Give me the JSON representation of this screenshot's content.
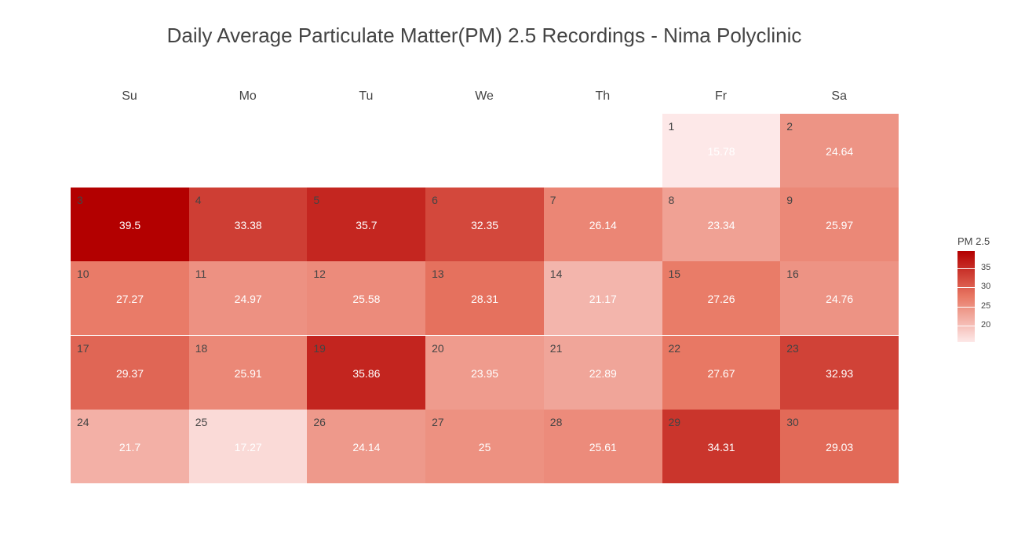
{
  "chart_data": {
    "type": "heatmap",
    "title": "Daily Average Particulate Matter(PM) 2.5 Recordings - Nima Polyclinic",
    "weekdays": [
      "Su",
      "Mo",
      "Tu",
      "We",
      "Th",
      "Fr",
      "Sa"
    ],
    "first_weekday_index": 5,
    "days": [
      {
        "day": 1,
        "value": "15.78"
      },
      {
        "day": 2,
        "value": "24.64"
      },
      {
        "day": 3,
        "value": "39.5"
      },
      {
        "day": 4,
        "value": "33.38"
      },
      {
        "day": 5,
        "value": "35.7"
      },
      {
        "day": 6,
        "value": "32.35"
      },
      {
        "day": 7,
        "value": "26.14"
      },
      {
        "day": 8,
        "value": "23.34"
      },
      {
        "day": 9,
        "value": "25.97"
      },
      {
        "day": 10,
        "value": "27.27"
      },
      {
        "day": 11,
        "value": "24.97"
      },
      {
        "day": 12,
        "value": "25.58"
      },
      {
        "day": 13,
        "value": "28.31"
      },
      {
        "day": 14,
        "value": "21.17"
      },
      {
        "day": 15,
        "value": "27.26"
      },
      {
        "day": 16,
        "value": "24.76"
      },
      {
        "day": 17,
        "value": "29.37"
      },
      {
        "day": 18,
        "value": "25.91"
      },
      {
        "day": 19,
        "value": "35.86"
      },
      {
        "day": 20,
        "value": "23.95"
      },
      {
        "day": 21,
        "value": "22.89"
      },
      {
        "day": 22,
        "value": "27.67"
      },
      {
        "day": 23,
        "value": "32.93"
      },
      {
        "day": 24,
        "value": "21.7"
      },
      {
        "day": 25,
        "value": "17.27"
      },
      {
        "day": 26,
        "value": "24.14"
      },
      {
        "day": 27,
        "value": "25"
      },
      {
        "day": 28,
        "value": "25.61"
      },
      {
        "day": 29,
        "value": "34.31"
      },
      {
        "day": 30,
        "value": "29.03"
      }
    ],
    "color_scale": {
      "title": "PM 2.5",
      "min": 15.78,
      "max": 39.5,
      "low_color": "#fde8e8",
      "high_color": "#b30000",
      "ticks": [
        "20",
        "25",
        "30",
        "35"
      ]
    }
  }
}
